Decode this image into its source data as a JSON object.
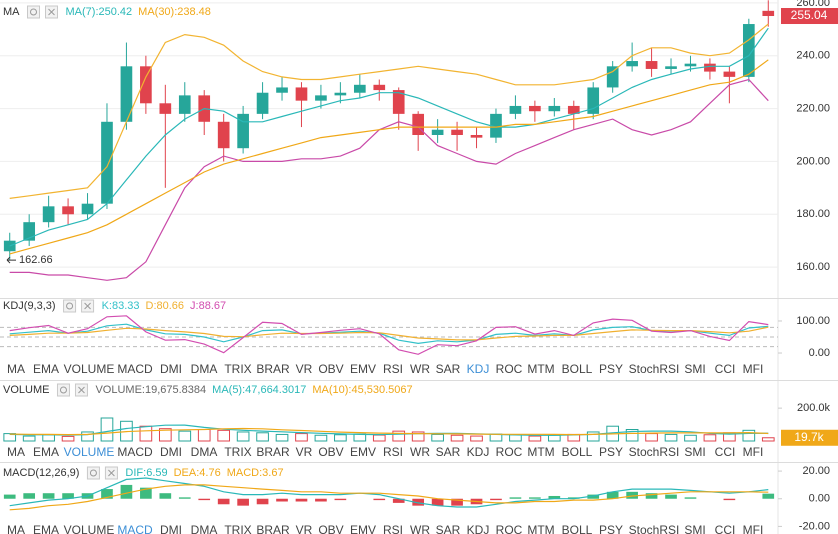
{
  "chart_data": [
    {
      "type": "candlestick",
      "title": "MA",
      "open": [
        166,
        170,
        177,
        183,
        180,
        184,
        215,
        236,
        222,
        218,
        225,
        215,
        205,
        218,
        226,
        228,
        223,
        225,
        226,
        229,
        227,
        218,
        210,
        212,
        210,
        209,
        218,
        221,
        219,
        221,
        218,
        228,
        236,
        238,
        235,
        236,
        237,
        234,
        232,
        257
      ],
      "high": [
        173,
        180,
        187,
        186,
        188,
        222,
        245,
        240,
        229,
        230,
        227,
        218,
        221,
        230,
        232,
        230,
        229,
        230,
        233,
        231,
        228,
        219,
        216,
        215,
        213,
        220,
        225,
        223,
        224,
        223,
        230,
        238,
        245,
        243,
        239,
        240,
        239,
        236,
        254,
        261
      ],
      "low": [
        162.66,
        168,
        175,
        176,
        178,
        182,
        212,
        218,
        190,
        215,
        210,
        200,
        203,
        216,
        223,
        213,
        220,
        222,
        224,
        223,
        212,
        204,
        207,
        204,
        205,
        207,
        216,
        215,
        217,
        212,
        216,
        226,
        234,
        232,
        233,
        234,
        231,
        222,
        230,
        251
      ],
      "close": [
        170,
        177,
        183,
        180,
        184,
        215,
        236,
        222,
        218,
        225,
        215,
        205,
        218,
        226,
        228,
        223,
        225,
        226,
        229,
        227,
        218,
        210,
        212,
        210,
        209,
        218,
        221,
        219,
        221,
        218,
        228,
        236,
        238,
        235,
        236,
        237,
        234,
        232,
        252,
        255.04
      ],
      "up_color": "#26a69a",
      "down_color": "#e0434d",
      "series": [
        {
          "color": "#f2b431",
          "values": [
            186,
            187,
            188,
            189,
            190,
            198,
            215,
            232,
            245,
            248,
            247,
            244,
            238,
            234,
            232,
            231,
            231,
            232,
            233,
            234,
            235,
            236,
            235,
            234,
            233,
            231,
            229,
            229,
            229,
            230,
            231,
            234,
            240,
            243,
            243,
            241,
            240,
            241,
            246,
            252
          ]
        },
        {
          "color": "#c94aa8",
          "values": [
            158,
            158,
            157,
            157,
            156,
            155,
            156,
            162,
            176,
            190,
            198,
            202,
            200,
            200,
            200,
            201,
            201,
            202,
            205,
            212,
            215,
            213,
            206,
            203,
            200,
            199,
            203,
            206,
            209,
            212,
            214,
            216,
            212,
            210,
            212,
            215,
            222,
            229,
            231,
            223
          ]
        },
        {
          "color": "#2ab8b8",
          "values": [
            168,
            171,
            174,
            176,
            178,
            184,
            193,
            202,
            210,
            216,
            220,
            219,
            215,
            215,
            217,
            219,
            221,
            223,
            224,
            226,
            226,
            224,
            221,
            218,
            215,
            213,
            213,
            214,
            216,
            218,
            220,
            224,
            228,
            231,
            233,
            235,
            236,
            236,
            240,
            250.42
          ]
        },
        {
          "color": "#f0a818",
          "values": [
            165,
            167,
            169,
            171,
            173,
            176,
            180,
            184,
            188,
            192,
            196,
            199,
            201,
            203,
            205,
            207,
            209,
            210,
            211,
            212,
            213,
            213,
            213,
            213,
            213,
            213,
            214,
            214,
            215,
            216,
            217,
            219,
            221,
            223,
            225,
            227,
            229,
            230,
            233,
            238.48
          ]
        }
      ],
      "legend": [
        {
          "text": "MA(7):250.42",
          "color": "#2ab8b8"
        },
        {
          "text": "MA(30):238.48",
          "color": "#f0a818"
        }
      ],
      "ylim": [
        148.3,
        261.1
      ],
      "yticks": [
        {
          "value": 160,
          "label": "160.00"
        },
        {
          "value": 180,
          "label": "180.00"
        },
        {
          "value": 200,
          "label": "200.00"
        },
        {
          "value": 220,
          "label": "220.00"
        },
        {
          "value": 240,
          "label": "240.00"
        },
        {
          "value": 260,
          "label": "260.00"
        }
      ],
      "grid": true,
      "last_price": 255.04,
      "annotation": {
        "value": 162.66
      }
    },
    {
      "type": "line",
      "title": "KDJ(9,3,3)",
      "series": [
        {
          "color": "#33c1c9",
          "values": [
            60,
            65,
            70,
            62,
            68,
            85,
            90,
            72,
            60,
            58,
            50,
            35,
            50,
            70,
            72,
            60,
            62,
            65,
            68,
            62,
            40,
            30,
            38,
            35,
            40,
            58,
            62,
            55,
            60,
            55,
            72,
            80,
            82,
            70,
            68,
            70,
            62,
            55,
            78,
            83.33
          ]
        },
        {
          "color": "#f0b030",
          "values": [
            55,
            58,
            62,
            62,
            64,
            71,
            77,
            75,
            70,
            66,
            61,
            52,
            51,
            57,
            62,
            61,
            61,
            62,
            64,
            63,
            55,
            47,
            44,
            41,
            41,
            47,
            52,
            53,
            55,
            55,
            61,
            67,
            72,
            71,
            70,
            70,
            67,
            63,
            68,
            80.66
          ]
        },
        {
          "color": "#d24db0",
          "values": [
            70,
            79,
            86,
            62,
            76,
            113,
            116,
            66,
            40,
            42,
            28,
            1,
            48,
            96,
            92,
            58,
            64,
            71,
            76,
            60,
            10,
            -4,
            26,
            23,
            38,
            80,
            82,
            59,
            70,
            55,
            94,
            106,
            102,
            68,
            64,
            70,
            52,
            39,
            98,
            88.67
          ]
        }
      ],
      "legend": [
        {
          "text": "K:83.33",
          "color": "#33c1c9"
        },
        {
          "text": "D:80.66",
          "color": "#f0b030"
        },
        {
          "text": "J:88.67",
          "color": "#d24db0"
        }
      ],
      "ylim": [
        -28,
        128
      ],
      "yticks": [
        {
          "value": 0,
          "label": "0.00"
        },
        {
          "value": 100,
          "label": "100.00"
        }
      ],
      "reference_lines": [
        20,
        50,
        80
      ],
      "active_tab": 14
    },
    {
      "type": "bar",
      "title": "VOLUME",
      "values": [
        45000,
        30000,
        38000,
        28000,
        55000,
        140000,
        120000,
        90000,
        75000,
        60000,
        70000,
        65000,
        55000,
        50000,
        40000,
        45000,
        35000,
        38000,
        42000,
        36000,
        60000,
        55000,
        40000,
        35000,
        30000,
        42000,
        38000,
        30000,
        35000,
        40000,
        55000,
        90000,
        70000,
        45000,
        40000,
        35000,
        38000,
        50000,
        65000,
        19675.8384
      ],
      "series": [
        {
          "color": "#2ab8b8",
          "values": [
            40000,
            38000,
            38000,
            36000,
            39000,
            58000,
            76000,
            87000,
            96000,
            97000,
            83000,
            72000,
            65000,
            60000,
            56000,
            51000,
            47000,
            43000,
            40000,
            39000,
            42000,
            45000,
            47000,
            47000,
            44000,
            40000,
            37000,
            35000,
            35000,
            37000,
            40000,
            50000,
            58000,
            60000,
            60000,
            56000,
            46000,
            42000,
            46000,
            47664.3017
          ]
        },
        {
          "color": "#f0a818",
          "values": [
            42000,
            41000,
            40000,
            39000,
            40000,
            48000,
            57000,
            62000,
            66000,
            68000,
            70000,
            74000,
            76000,
            74000,
            68000,
            64000,
            59000,
            54000,
            51000,
            48000,
            46000,
            45000,
            44000,
            43000,
            42000,
            41000,
            41000,
            41000,
            40000,
            39000,
            40000,
            43000,
            46000,
            48000,
            49000,
            49000,
            49000,
            49000,
            51000,
            45530.5067
          ]
        }
      ],
      "legend": [
        {
          "text": "VOLUME:19,675.8384",
          "color": "#666666"
        },
        {
          "text": "MA(5):47,664.3017",
          "color": "#2ab8b8"
        },
        {
          "text": "MA(10):45,530.5067",
          "color": "#f0a818"
        }
      ],
      "ylim": [
        0,
        280000
      ],
      "yticks": [
        {
          "value": 200000,
          "label": "200.0k"
        }
      ],
      "last_value": {
        "value": 19675.8384,
        "label": "19.7k"
      },
      "active_tab": 2
    },
    {
      "type": "macd",
      "title": "MACD(12,26,9)",
      "histogram": [
        3,
        4,
        4,
        4,
        4,
        7,
        10,
        8,
        4,
        1,
        -1,
        -4,
        -5,
        -4,
        -2,
        -2,
        -2,
        -1,
        0,
        -1,
        -3,
        -5,
        -5,
        -5,
        -4,
        -1,
        1,
        1,
        2,
        1,
        3,
        5,
        5,
        4,
        3,
        1,
        0,
        -1,
        0,
        3.67
      ],
      "up_color": "#3dbb7f",
      "down_color": "#e0434d",
      "series": [
        {
          "color": "#2ab8b8",
          "values": [
            -5,
            -3,
            -1,
            0,
            2,
            8,
            14,
            15,
            13,
            11,
            9,
            5,
            3,
            3,
            4,
            3,
            3,
            3,
            4,
            3,
            0,
            -3,
            -5,
            -6,
            -6,
            -4,
            -2,
            -1,
            0,
            0,
            2,
            5,
            7,
            7,
            7,
            6,
            5,
            4,
            5,
            6.59
          ]
        },
        {
          "color": "#f0a818",
          "values": [
            -8,
            -7,
            -5,
            -4,
            -2,
            1,
            4,
            7,
            9,
            10,
            10,
            9,
            8,
            7,
            6,
            5,
            5,
            4,
            4,
            4,
            3,
            2,
            0,
            -1,
            -2,
            -3,
            -3,
            -2,
            -2,
            -1,
            -1,
            0,
            2,
            3,
            4,
            5,
            5,
            5,
            5,
            4.76
          ]
        }
      ],
      "legend": [
        {
          "text": "DIF:6.59",
          "color": "#2ab8b8"
        },
        {
          "text": "DEA:4.76",
          "color": "#f0a818"
        },
        {
          "text": "MACD:3.67",
          "color": "#f0a818"
        }
      ],
      "ylim": [
        -25.5,
        24.4
      ],
      "yticks": [
        {
          "value": -20,
          "label": "-20.00"
        },
        {
          "value": 0,
          "label": "0.00"
        },
        {
          "value": 20,
          "label": "20.00"
        }
      ],
      "active_tab": 3
    }
  ],
  "indicator_tabs": [
    "MA",
    "EMA",
    "VOLUME",
    "MACD",
    "DMI",
    "DMA",
    "TRIX",
    "BRAR",
    "VR",
    "OBV",
    "EMV",
    "RSI",
    "WR",
    "SAR",
    "KDJ",
    "ROC",
    "MTM",
    "BOLL",
    "PSY",
    "StochRSI",
    "SMI",
    "CCI",
    "MFI"
  ]
}
